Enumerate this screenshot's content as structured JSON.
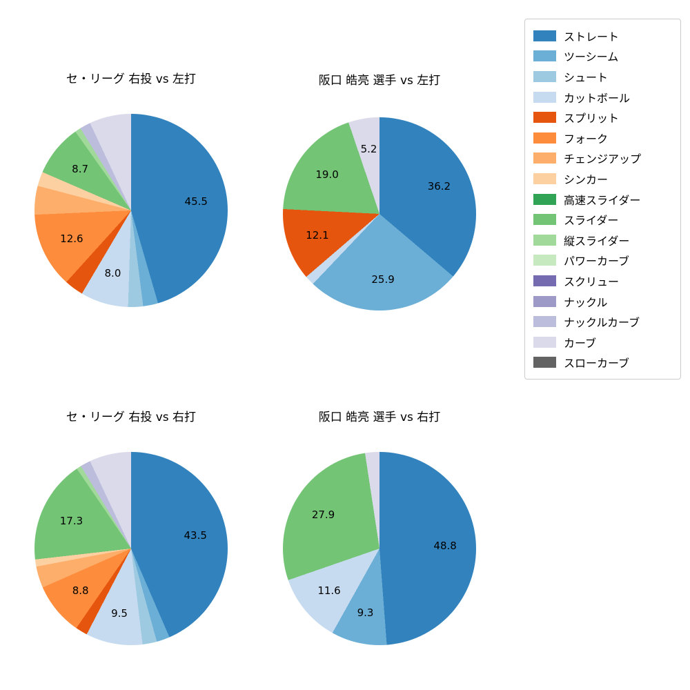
{
  "legend": {
    "items": [
      {
        "label": "ストレート",
        "color": "#3182bd"
      },
      {
        "label": "ツーシーム",
        "color": "#6baed6"
      },
      {
        "label": "シュート",
        "color": "#9ecae1"
      },
      {
        "label": "カットボール",
        "color": "#c6dbef"
      },
      {
        "label": "スプリット",
        "color": "#e6550d"
      },
      {
        "label": "フォーク",
        "color": "#fd8d3c"
      },
      {
        "label": "チェンジアップ",
        "color": "#fdae6b"
      },
      {
        "label": "シンカー",
        "color": "#fdd0a2"
      },
      {
        "label": "高速スライダー",
        "color": "#31a354"
      },
      {
        "label": "スライダー",
        "color": "#74c476"
      },
      {
        "label": "縦スライダー",
        "color": "#a1d99b"
      },
      {
        "label": "パワーカーブ",
        "color": "#c7e9c0"
      },
      {
        "label": "スクリュー",
        "color": "#756bb1"
      },
      {
        "label": "ナックル",
        "color": "#9e9ac8"
      },
      {
        "label": "ナックルカーブ",
        "color": "#bcbddc"
      },
      {
        "label": "カーブ",
        "color": "#dadaeb"
      },
      {
        "label": "スローカーブ",
        "color": "#636363"
      }
    ]
  },
  "chart_data": [
    {
      "type": "pie",
      "title": "セ・リーグ 右投 vs 左打",
      "start_angle_deg": 0,
      "direction": "clockwise-from-top",
      "slices": [
        {
          "pitch": "ストレート",
          "value": 45.5,
          "labeled": true
        },
        {
          "pitch": "ツーシーム",
          "value": 2.5,
          "labeled": false
        },
        {
          "pitch": "シュート",
          "value": 2.5,
          "labeled": false
        },
        {
          "pitch": "カットボール",
          "value": 8.0,
          "labeled": true
        },
        {
          "pitch": "スプリット",
          "value": 3.2,
          "labeled": false
        },
        {
          "pitch": "フォーク",
          "value": 12.6,
          "labeled": true
        },
        {
          "pitch": "チェンジアップ",
          "value": 4.8,
          "labeled": false
        },
        {
          "pitch": "シンカー",
          "value": 2.4,
          "labeled": false
        },
        {
          "pitch": "スライダー",
          "value": 8.7,
          "labeled": true
        },
        {
          "pitch": "縦スライダー",
          "value": 1.0,
          "labeled": false
        },
        {
          "pitch": "ナックルカーブ",
          "value": 1.8,
          "labeled": false
        },
        {
          "pitch": "カーブ",
          "value": 7.0,
          "labeled": false
        }
      ]
    },
    {
      "type": "pie",
      "title": "阪口 皓亮 選手 vs 左打",
      "start_angle_deg": 0,
      "direction": "clockwise-from-top",
      "slices": [
        {
          "pitch": "ストレート",
          "value": 36.2,
          "labeled": true
        },
        {
          "pitch": "ツーシーム",
          "value": 25.9,
          "labeled": true
        },
        {
          "pitch": "カットボール",
          "value": 1.6,
          "labeled": false
        },
        {
          "pitch": "スプリット",
          "value": 12.1,
          "labeled": true
        },
        {
          "pitch": "スライダー",
          "value": 19.0,
          "labeled": true
        },
        {
          "pitch": "カーブ",
          "value": 5.2,
          "labeled": true
        }
      ]
    },
    {
      "type": "pie",
      "title": "セ・リーグ 右投 vs 右打",
      "start_angle_deg": 0,
      "direction": "clockwise-from-top",
      "slices": [
        {
          "pitch": "ストレート",
          "value": 43.5,
          "labeled": true
        },
        {
          "pitch": "ツーシーム",
          "value": 2.2,
          "labeled": false
        },
        {
          "pitch": "シュート",
          "value": 2.4,
          "labeled": false
        },
        {
          "pitch": "カットボール",
          "value": 9.5,
          "labeled": true
        },
        {
          "pitch": "スプリット",
          "value": 2.0,
          "labeled": false
        },
        {
          "pitch": "フォーク",
          "value": 8.8,
          "labeled": true
        },
        {
          "pitch": "チェンジアップ",
          "value": 3.6,
          "labeled": false
        },
        {
          "pitch": "シンカー",
          "value": 1.2,
          "labeled": false
        },
        {
          "pitch": "スライダー",
          "value": 17.3,
          "labeled": true
        },
        {
          "pitch": "縦スライダー",
          "value": 0.8,
          "labeled": false
        },
        {
          "pitch": "ナックルカーブ",
          "value": 1.7,
          "labeled": false
        },
        {
          "pitch": "カーブ",
          "value": 7.0,
          "labeled": false
        }
      ]
    },
    {
      "type": "pie",
      "title": "阪口 皓亮 選手 vs 右打",
      "start_angle_deg": 0,
      "direction": "clockwise-from-top",
      "slices": [
        {
          "pitch": "ストレート",
          "value": 48.8,
          "labeled": true
        },
        {
          "pitch": "ツーシーム",
          "value": 9.3,
          "labeled": true
        },
        {
          "pitch": "カットボール",
          "value": 11.6,
          "labeled": true
        },
        {
          "pitch": "スライダー",
          "value": 27.9,
          "labeled": true
        },
        {
          "pitch": "カーブ",
          "value": 2.4,
          "labeled": false
        }
      ]
    }
  ]
}
